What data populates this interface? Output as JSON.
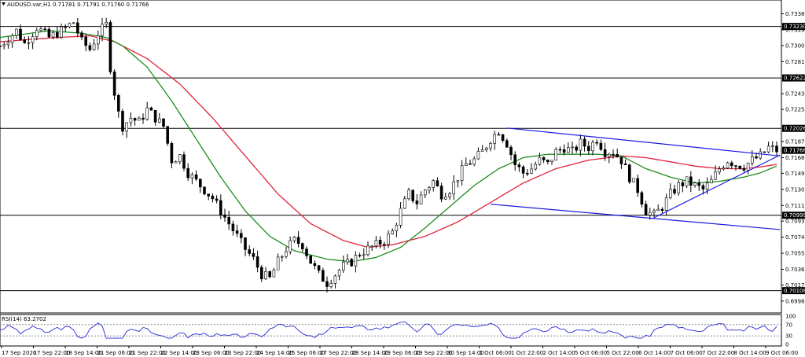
{
  "window": {
    "symbol_info": "AUDUSD.var,H1  0.71781 0.71791 0.71760 0.71766",
    "dropdown_icon": "triangle-down-icon"
  },
  "colors": {
    "background": "#ffffff",
    "axis": "#000000",
    "bull_candle": "#000000",
    "bear_candle": "#000000",
    "ma_fast": "#1f8b1f",
    "ma_slow": "#e0243c",
    "trendline": "#1a1ae0",
    "level_line": "#000000",
    "rsi_line": "#2a2ad8",
    "price_label_bg": "#000000"
  },
  "price_axis": {
    "ticks": [
      "0.73380",
      "0.73190",
      "0.73005",
      "0.72815",
      "0.72435",
      "0.72250",
      "0.71870",
      "0.71680",
      "0.71495",
      "0.71305",
      "0.71115",
      "0.70930",
      "0.70740",
      "0.70550",
      "0.70360",
      "0.70175",
      "0.69985"
    ],
    "level_labels": [
      "0.73230",
      "0.72622",
      "0.72026",
      "0.71766",
      "0.70999",
      "0.70108"
    ]
  },
  "rsi": {
    "title": "RSI(14) 63.2702",
    "scale_labels": [
      "100",
      "70",
      "30",
      "0"
    ]
  },
  "time_axis": {
    "labels": [
      "17 Sep 2020",
      "17 Sep 22:00",
      "18 Sep 14:00",
      "21 Sep 06:00",
      "21 Sep 22:00",
      "22 Sep 14:00",
      "23 Sep 06:00",
      "23 Sep 22:00",
      "24 Sep 14:00",
      "25 Sep 06:00",
      "27 Sep 22:00",
      "28 Sep 14:00",
      "29 Sep 06:00",
      "29 Sep 22:00",
      "30 Sep 14:00",
      "1 Oct 06:00",
      "1 Oct 22:00",
      "2 Oct 14:00",
      "5 Oct 06:00",
      "5 Oct 22:00",
      "6 Oct 14:00",
      "7 Oct 06:00",
      "7 Oct 22:00",
      "8 Oct 14:00",
      "9 Oct 06:00"
    ]
  },
  "chart_data": {
    "type": "candlestick",
    "symbol": "AUDUSD.var",
    "timeframe": "H1",
    "last_bar": {
      "open": 0.71781,
      "high": 0.71791,
      "low": 0.7176,
      "close": 0.71766
    },
    "price_range": [
      0.699,
      0.7345
    ],
    "horizontal_levels": [
      0.7323,
      0.72622,
      0.72026,
      0.70999,
      0.70108
    ],
    "current_price": 0.71766,
    "close_path": [
      [
        0,
        0.73
      ],
      [
        4,
        0.7318
      ],
      [
        6,
        0.7303
      ],
      [
        9,
        0.7322
      ],
      [
        12,
        0.731
      ],
      [
        15,
        0.7318
      ],
      [
        18,
        0.7328
      ],
      [
        20,
        0.7305
      ],
      [
        22,
        0.7296
      ],
      [
        24,
        0.7315
      ],
      [
        26,
        0.7325
      ],
      [
        27,
        0.7275
      ],
      [
        28,
        0.7245
      ],
      [
        29,
        0.722
      ],
      [
        30,
        0.7205
      ],
      [
        32,
        0.7215
      ],
      [
        34,
        0.721
      ],
      [
        36,
        0.7225
      ],
      [
        38,
        0.7215
      ],
      [
        40,
        0.7205
      ],
      [
        41,
        0.7185
      ],
      [
        42,
        0.7165
      ],
      [
        44,
        0.717
      ],
      [
        46,
        0.715
      ],
      [
        48,
        0.714
      ],
      [
        50,
        0.713
      ],
      [
        52,
        0.712
      ],
      [
        54,
        0.7105
      ],
      [
        56,
        0.709
      ],
      [
        58,
        0.7075
      ],
      [
        60,
        0.706
      ],
      [
        62,
        0.7048
      ],
      [
        64,
        0.703
      ],
      [
        66,
        0.7025
      ],
      [
        68,
        0.7045
      ],
      [
        70,
        0.706
      ],
      [
        72,
        0.707
      ],
      [
        74,
        0.7065
      ],
      [
        76,
        0.7045
      ],
      [
        78,
        0.703
      ],
      [
        80,
        0.702
      ],
      [
        82,
        0.703
      ],
      [
        84,
        0.704
      ],
      [
        86,
        0.7045
      ],
      [
        88,
        0.7055
      ],
      [
        90,
        0.706
      ],
      [
        92,
        0.7065
      ],
      [
        94,
        0.707
      ],
      [
        96,
        0.708
      ],
      [
        98,
        0.7105
      ],
      [
        100,
        0.7125
      ],
      [
        102,
        0.7115
      ],
      [
        104,
        0.713
      ],
      [
        106,
        0.714
      ],
      [
        108,
        0.7125
      ],
      [
        110,
        0.713
      ],
      [
        112,
        0.7145
      ],
      [
        114,
        0.716
      ],
      [
        116,
        0.7165
      ],
      [
        118,
        0.7175
      ],
      [
        120,
        0.719
      ],
      [
        122,
        0.72
      ],
      [
        124,
        0.7185
      ],
      [
        126,
        0.716
      ],
      [
        128,
        0.715
      ],
      [
        130,
        0.7155
      ],
      [
        132,
        0.7165
      ],
      [
        134,
        0.716
      ],
      [
        136,
        0.7175
      ],
      [
        138,
        0.718
      ],
      [
        140,
        0.7175
      ],
      [
        142,
        0.7185
      ],
      [
        144,
        0.718
      ],
      [
        146,
        0.719
      ],
      [
        148,
        0.7175
      ],
      [
        150,
        0.7175
      ],
      [
        152,
        0.7165
      ],
      [
        154,
        0.7145
      ],
      [
        156,
        0.713
      ],
      [
        158,
        0.7105
      ],
      [
        160,
        0.71
      ],
      [
        162,
        0.711
      ],
      [
        164,
        0.7125
      ],
      [
        166,
        0.7135
      ],
      [
        168,
        0.714
      ],
      [
        170,
        0.7135
      ],
      [
        172,
        0.713
      ],
      [
        174,
        0.714
      ],
      [
        176,
        0.7155
      ],
      [
        178,
        0.7165
      ],
      [
        180,
        0.716
      ],
      [
        182,
        0.7158
      ],
      [
        184,
        0.7165
      ],
      [
        186,
        0.717
      ],
      [
        188,
        0.718
      ],
      [
        190,
        0.71766
      ]
    ],
    "ma_fast_path": [
      [
        0,
        0.731
      ],
      [
        12,
        0.7318
      ],
      [
        20,
        0.7315
      ],
      [
        26,
        0.731
      ],
      [
        30,
        0.73
      ],
      [
        36,
        0.7275
      ],
      [
        42,
        0.7235
      ],
      [
        48,
        0.719
      ],
      [
        54,
        0.7145
      ],
      [
        60,
        0.7105
      ],
      [
        66,
        0.7075
      ],
      [
        72,
        0.7058
      ],
      [
        80,
        0.7048
      ],
      [
        86,
        0.7045
      ],
      [
        92,
        0.705
      ],
      [
        98,
        0.7062
      ],
      [
        104,
        0.7085
      ],
      [
        110,
        0.711
      ],
      [
        116,
        0.7135
      ],
      [
        122,
        0.7155
      ],
      [
        128,
        0.7168
      ],
      [
        134,
        0.7172
      ],
      [
        140,
        0.7172
      ],
      [
        146,
        0.7172
      ],
      [
        152,
        0.717
      ],
      [
        158,
        0.7155
      ],
      [
        164,
        0.7145
      ],
      [
        170,
        0.7138
      ],
      [
        176,
        0.714
      ],
      [
        182,
        0.7145
      ],
      [
        186,
        0.715
      ],
      [
        190,
        0.7158
      ]
    ],
    "ma_slow_path": [
      [
        0,
        0.7305
      ],
      [
        14,
        0.731
      ],
      [
        22,
        0.7312
      ],
      [
        28,
        0.7305
      ],
      [
        36,
        0.7285
      ],
      [
        44,
        0.7255
      ],
      [
        52,
        0.7215
      ],
      [
        60,
        0.717
      ],
      [
        68,
        0.7125
      ],
      [
        76,
        0.709
      ],
      [
        84,
        0.707
      ],
      [
        90,
        0.7062
      ],
      [
        96,
        0.7065
      ],
      [
        104,
        0.7075
      ],
      [
        112,
        0.7092
      ],
      [
        120,
        0.7115
      ],
      [
        128,
        0.7138
      ],
      [
        136,
        0.7155
      ],
      [
        144,
        0.7165
      ],
      [
        152,
        0.717
      ],
      [
        158,
        0.7168
      ],
      [
        164,
        0.7163
      ],
      [
        170,
        0.7158
      ],
      [
        176,
        0.7155
      ],
      [
        182,
        0.7155
      ],
      [
        186,
        0.7157
      ],
      [
        190,
        0.716
      ]
    ],
    "trendlines": [
      {
        "name": "channel-upper",
        "from": [
          124,
          0.7203
        ],
        "to": [
          190,
          0.717
        ]
      },
      {
        "name": "channel-lower",
        "from": [
          120,
          0.7113
        ],
        "to": [
          190,
          0.7083
        ]
      },
      {
        "name": "support-rising",
        "from": [
          160,
          0.7097
        ],
        "to": [
          190,
          0.7171
        ]
      }
    ],
    "rsi_range": [
      0,
      100
    ],
    "rsi_levels": [
      70,
      30
    ],
    "rsi_last": 63.2702
  }
}
